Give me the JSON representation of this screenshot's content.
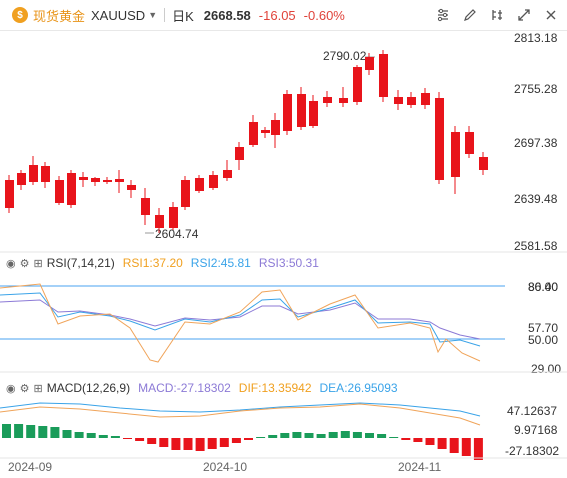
{
  "header": {
    "logo_char": "$",
    "instrument_name": "现货黄金",
    "symbol": "XAUUSD",
    "period": "日K",
    "last_price": "2668.58",
    "change": "-16.05",
    "change_pct": "-0.60%",
    "tools": [
      "settings-sliders-icon",
      "draw-icon",
      "compare-icon",
      "expand-icon",
      "close-icon"
    ]
  },
  "main_chart": {
    "price_labels": [
      "2813.18",
      "2755.28",
      "2697.38",
      "2639.48",
      "2581.58"
    ],
    "high_annotation": "2790.02",
    "low_annotation": "2604.74",
    "colors": {
      "up": "#1a9c5a",
      "down": "#e8141b"
    }
  },
  "rsi": {
    "title": "RSI(7,14,21)",
    "rsi1": "RSI1:37.20",
    "rsi2": "RSI2:45.81",
    "rsi3": "RSI3:50.31",
    "levels": [
      "80.00",
      "86.40",
      "57.70",
      "50.00",
      "29.00"
    ]
  },
  "macd": {
    "title": "MACD(12,26,9)",
    "macd_val": "MACD:-27.18302",
    "dif": "DIF:13.35942",
    "dea": "DEA:26.95093",
    "levels": [
      "47.12637",
      "9.97168",
      "-27.18302"
    ]
  },
  "x_axis": [
    "2024-09",
    "2024-10",
    "2024-11"
  ]
}
